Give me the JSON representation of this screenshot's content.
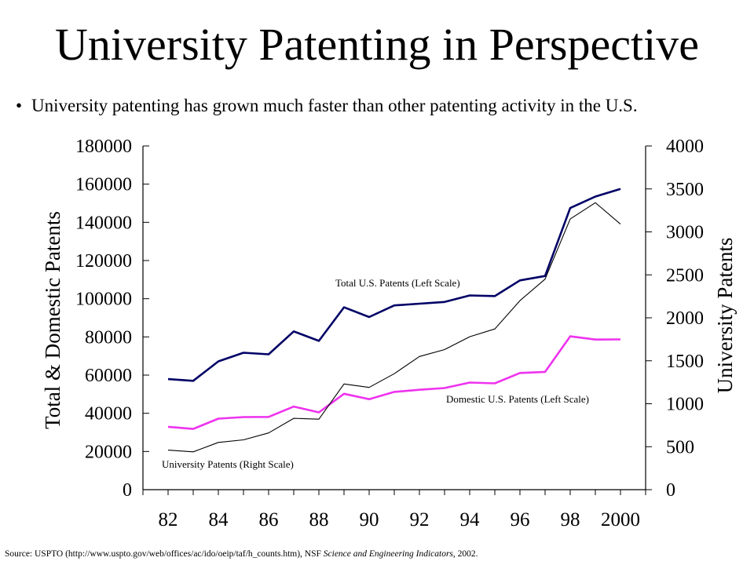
{
  "title": "University Patenting in Perspective",
  "bullet": "University patenting has grown much faster than other patenting activity in the U.S.",
  "source": {
    "prefix": "Source: USPTO (http://www.uspto.gov/web/offices/ac/ido/oeip/taf/h_counts.htm), NSF ",
    "italic": "Science and Engineering Indicators",
    "suffix": ", 2002."
  },
  "chart_data": {
    "type": "line",
    "x_tick_labels": [
      "82",
      "84",
      "86",
      "88",
      "90",
      "92",
      "94",
      "96",
      "98",
      "2000"
    ],
    "x": [
      1982,
      1983,
      1984,
      1985,
      1986,
      1987,
      1988,
      1989,
      1990,
      1991,
      1992,
      1993,
      1994,
      1995,
      1996,
      1997,
      1998,
      1999,
      2000
    ],
    "xlim": [
      1981,
      2001
    ],
    "ylabel_left": "Total & Domestic Patents",
    "ylabel_right": "University Patents",
    "ylim_left": [
      0,
      180000
    ],
    "ylim_right": [
      0,
      4000
    ],
    "yticks_left": [
      "0",
      "20000",
      "40000",
      "60000",
      "80000",
      "100000",
      "120000",
      "140000",
      "160000",
      "180000"
    ],
    "yticks_right": [
      "0",
      "500",
      "1000",
      "1500",
      "2000",
      "2500",
      "3000",
      "3500",
      "4000"
    ],
    "series": [
      {
        "name": "Total U.S. Patents (Left Scale)",
        "axis": "left",
        "color": "#000066",
        "values": [
          57900,
          57000,
          67200,
          71700,
          70900,
          82900,
          77900,
          95500,
          90400,
          96500,
          97400,
          98300,
          101700,
          101400,
          109600,
          111900,
          147500,
          153500,
          157500
        ]
      },
      {
        "name": "Domestic U.S. Patents (Left Scale)",
        "axis": "left",
        "color": "#ee33ee",
        "values": [
          32900,
          31800,
          37200,
          38000,
          38100,
          43500,
          40500,
          50200,
          47400,
          51200,
          52300,
          53200,
          56100,
          55700,
          61100,
          61700,
          80300,
          78600,
          78700
        ]
      },
      {
        "name": "University Patents (Right Scale)",
        "axis": "right",
        "color": "#000000",
        "values": [
          460,
          440,
          550,
          580,
          660,
          830,
          820,
          1230,
          1190,
          1350,
          1550,
          1630,
          1780,
          1870,
          2200,
          2450,
          3150,
          3340,
          3090
        ]
      }
    ]
  }
}
